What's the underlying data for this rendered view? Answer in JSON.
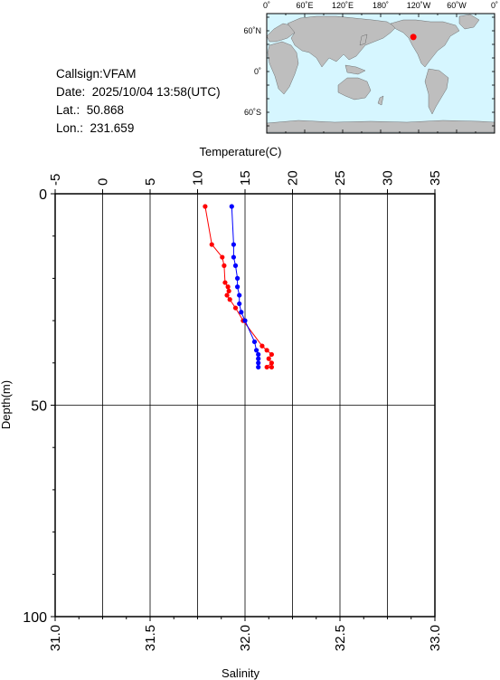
{
  "info": {
    "callsign": "Callsign:VFAM",
    "date": "Date:  2025/10/04 13:58(UTC)",
    "lat": "Lat.:  50.868",
    "lon": "Lon.:  231.659"
  },
  "map": {
    "top_labels": [
      "0˚",
      "60˚E",
      "120˚E",
      "180˚",
      "120˚W",
      "60˚W",
      "0˚"
    ],
    "left_labels": [
      "60˚N",
      "0˚",
      "60˚S"
    ],
    "ocean_color": "#d6f6ff",
    "land_color": "#bebebe",
    "marker_color": "#ff0000",
    "marker_lat": 50.868,
    "marker_lon": 231.659
  },
  "chart_data": {
    "type": "line",
    "xlabel_top": "Temperature(C)",
    "xlabel_bottom": "Salinity",
    "ylabel": "Depth(m)",
    "temperature_ticks": [
      "-5",
      "0",
      "5",
      "10",
      "15",
      "20",
      "25",
      "30",
      "35"
    ],
    "salinity_ticks": [
      "31.0",
      "31.5",
      "32.0",
      "32.5",
      "33.0"
    ],
    "depth_ticks": [
      "0",
      "50",
      "100"
    ],
    "temperature_range": [
      -5,
      35
    ],
    "salinity_range": [
      31.0,
      33.0
    ],
    "depth_range": [
      0,
      100
    ],
    "grid": true,
    "series": [
      {
        "name": "Temperature",
        "axis": "temperature",
        "color": "#ff0000",
        "points": [
          {
            "value": 10.8,
            "depth": 3
          },
          {
            "value": 11.5,
            "depth": 12
          },
          {
            "value": 12.6,
            "depth": 15
          },
          {
            "value": 12.8,
            "depth": 17
          },
          {
            "value": 12.9,
            "depth": 21
          },
          {
            "value": 13.2,
            "depth": 22
          },
          {
            "value": 13.3,
            "depth": 23
          },
          {
            "value": 13.1,
            "depth": 24
          },
          {
            "value": 13.4,
            "depth": 25
          },
          {
            "value": 14.0,
            "depth": 27
          },
          {
            "value": 14.8,
            "depth": 30
          },
          {
            "value": 16.8,
            "depth": 36
          },
          {
            "value": 17.3,
            "depth": 37
          },
          {
            "value": 17.8,
            "depth": 38
          },
          {
            "value": 17.5,
            "depth": 39
          },
          {
            "value": 17.8,
            "depth": 40
          },
          {
            "value": 17.3,
            "depth": 41
          },
          {
            "value": 17.8,
            "depth": 41
          }
        ]
      },
      {
        "name": "Salinity",
        "axis": "salinity",
        "color": "#0000ff",
        "points": [
          {
            "value": 31.93,
            "depth": 3
          },
          {
            "value": 31.94,
            "depth": 12
          },
          {
            "value": 31.94,
            "depth": 15
          },
          {
            "value": 31.95,
            "depth": 17
          },
          {
            "value": 31.96,
            "depth": 20
          },
          {
            "value": 31.96,
            "depth": 22
          },
          {
            "value": 31.97,
            "depth": 24
          },
          {
            "value": 31.97,
            "depth": 26
          },
          {
            "value": 31.98,
            "depth": 28
          },
          {
            "value": 32.0,
            "depth": 30
          },
          {
            "value": 32.05,
            "depth": 35
          },
          {
            "value": 32.06,
            "depth": 37
          },
          {
            "value": 32.07,
            "depth": 38
          },
          {
            "value": 32.07,
            "depth": 39
          },
          {
            "value": 32.07,
            "depth": 40
          },
          {
            "value": 32.07,
            "depth": 41
          }
        ]
      }
    ]
  }
}
